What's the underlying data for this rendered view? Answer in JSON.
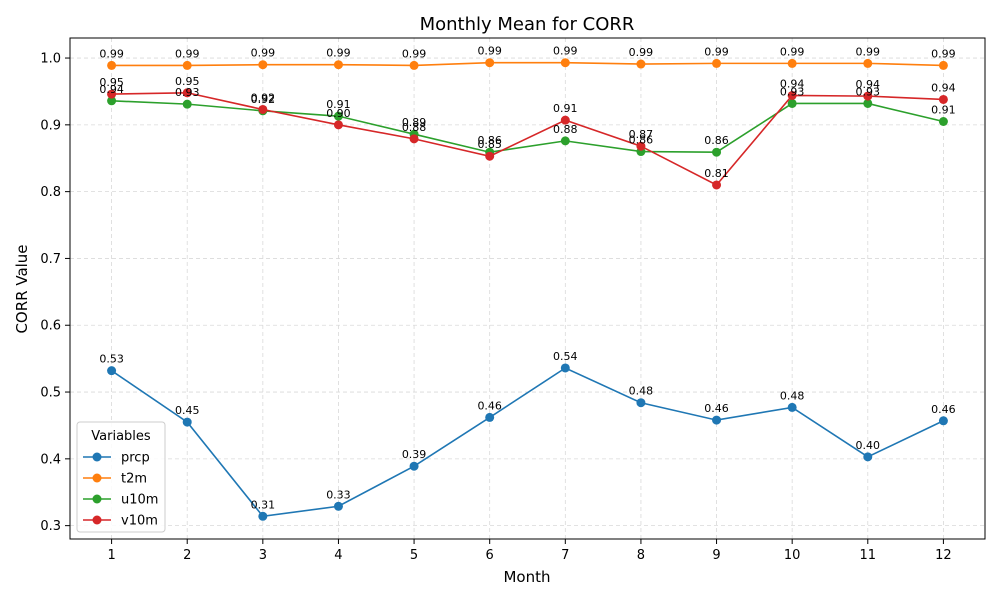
{
  "chart_data": {
    "type": "line",
    "title": "Monthly Mean for CORR",
    "xlabel": "Month",
    "ylabel": "CORR Value",
    "x": [
      1,
      2,
      3,
      4,
      5,
      6,
      7,
      8,
      9,
      10,
      11,
      12
    ],
    "x_ticks": [
      "1",
      "2",
      "3",
      "4",
      "5",
      "6",
      "7",
      "8",
      "9",
      "10",
      "11",
      "12"
    ],
    "xlim": [
      0.45,
      12.55
    ],
    "ylim": [
      0.28,
      1.03
    ],
    "y_ticks": [
      "0.3",
      "0.4",
      "0.5",
      "0.6",
      "0.7",
      "0.8",
      "0.9",
      "1.0"
    ],
    "y_tick_values": [
      0.3,
      0.4,
      0.5,
      0.6,
      0.7,
      0.8,
      0.9,
      1.0
    ],
    "grid": true,
    "legend": {
      "title": "Variables",
      "placement": "bottom-left"
    },
    "series": [
      {
        "name": "prcp",
        "color": "#1f77b4",
        "values": [
          0.532,
          0.455,
          0.314,
          0.329,
          0.389,
          0.462,
          0.536,
          0.484,
          0.458,
          0.477,
          0.403,
          0.457
        ],
        "labels": [
          "0.53",
          "0.45",
          "0.31",
          "0.33",
          "0.39",
          "0.46",
          "0.54",
          "0.48",
          "0.46",
          "0.48",
          "0.40",
          "0.46"
        ]
      },
      {
        "name": "t2m",
        "color": "#ff7f0e",
        "values": [
          0.989,
          0.989,
          0.99,
          0.99,
          0.989,
          0.993,
          0.993,
          0.991,
          0.992,
          0.992,
          0.992,
          0.989
        ],
        "labels": [
          "0.99",
          "0.99",
          "0.99",
          "0.99",
          "0.99",
          "0.99",
          "0.99",
          "0.99",
          "0.99",
          "0.99",
          "0.99",
          "0.99"
        ]
      },
      {
        "name": "u10m",
        "color": "#2ca02c",
        "values": [
          0.936,
          0.931,
          0.921,
          0.913,
          0.886,
          0.859,
          0.876,
          0.86,
          0.859,
          0.932,
          0.932,
          0.905
        ],
        "labels": [
          "0.94",
          "0.93",
          "0.92",
          "0.91",
          "0.89",
          "0.86",
          "0.88",
          "0.86",
          "0.86",
          "0.93",
          "0.93",
          "0.91"
        ]
      },
      {
        "name": "v10m",
        "color": "#d62728",
        "values": [
          0.946,
          0.948,
          0.923,
          0.9,
          0.879,
          0.853,
          0.907,
          0.868,
          0.81,
          0.944,
          0.943,
          0.938
        ],
        "labels": [
          "0.95",
          "0.95",
          "0.92",
          "0.90",
          "0.88",
          "0.85",
          "0.91",
          "0.87",
          "0.81",
          "0.94",
          "0.94",
          "0.94"
        ]
      }
    ]
  }
}
